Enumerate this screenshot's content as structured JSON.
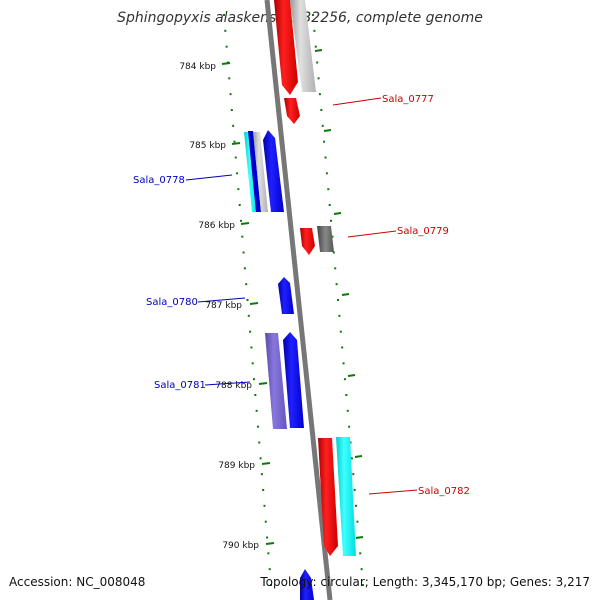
{
  "title": "Sphingopyxis alaskensis RB2256, complete genome",
  "accession": "Accession: NC_008048",
  "summary": "Topology: circular; Length: 3,345,170 bp; Genes: 3,217",
  "ticks": [
    "784 kbp",
    "785 kbp",
    "786 kbp",
    "787 kbp",
    "788 kbp",
    "789 kbp",
    "790 kbp"
  ],
  "genes": [
    {
      "label": "Sala_0777",
      "color": "#cc0000"
    },
    {
      "label": "Sala_0778",
      "color": "#0000bb"
    },
    {
      "label": "Sala_0779",
      "color": "#cc0000"
    },
    {
      "label": "Sala_0780",
      "color": "#0000bb"
    },
    {
      "label": "Sala_0781",
      "color": "#0000bb"
    },
    {
      "label": "Sala_0782",
      "color": "#cc0000"
    }
  ]
}
